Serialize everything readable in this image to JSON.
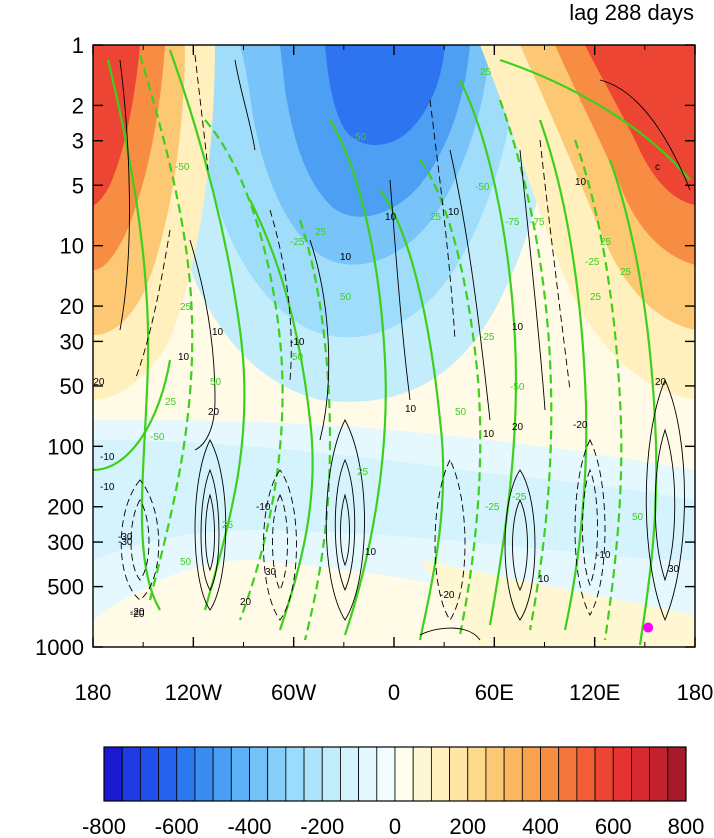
{
  "chart_data": {
    "type": "heatmap",
    "title": "lag 288 days",
    "xlabel": "",
    "ylabel": "",
    "x_ticks": [
      {
        "value": -180,
        "label": "180"
      },
      {
        "value": -120,
        "label": "120W"
      },
      {
        "value": -60,
        "label": "60W"
      },
      {
        "value": 0,
        "label": "0"
      },
      {
        "value": 60,
        "label": "60E"
      },
      {
        "value": 120,
        "label": "120E"
      },
      {
        "value": 180,
        "label": "180"
      }
    ],
    "y_scale": "log",
    "y_reversed": true,
    "y_ticks": [
      {
        "value": 1,
        "label": "1"
      },
      {
        "value": 2,
        "label": "2"
      },
      {
        "value": 3,
        "label": "3"
      },
      {
        "value": 5,
        "label": "5"
      },
      {
        "value": 10,
        "label": "10"
      },
      {
        "value": 20,
        "label": "20"
      },
      {
        "value": 30,
        "label": "30"
      },
      {
        "value": 50,
        "label": "50"
      },
      {
        "value": 100,
        "label": "100"
      },
      {
        "value": 200,
        "label": "200"
      },
      {
        "value": 300,
        "label": "300"
      },
      {
        "value": 500,
        "label": "500"
      },
      {
        "value": 1000,
        "label": "1000"
      }
    ],
    "xlim": [
      -180,
      180
    ],
    "ylim": [
      1000,
      1
    ],
    "colorbar": {
      "min": -800,
      "max": 800,
      "levels": 32,
      "labels": [
        "-800",
        "-600",
        "-400",
        "-200",
        "0",
        "200",
        "400",
        "600",
        "800"
      ],
      "label_values": [
        -800,
        -600,
        -400,
        -200,
        0,
        200,
        400,
        600,
        800
      ],
      "colors": [
        "#1c1ad0",
        "#1f3be4",
        "#2050ec",
        "#2563ef",
        "#2c78f0",
        "#3a8cf2",
        "#4a9ef4",
        "#5db1f6",
        "#72c2f8",
        "#86cffa",
        "#9bdbfb",
        "#aee4fb",
        "#c1ecfc",
        "#d3f3fd",
        "#e3f8fe",
        "#f1fcfe",
        "#fffdeb",
        "#fff7d4",
        "#fff0bd",
        "#ffe6a4",
        "#fed98c",
        "#fdc874",
        "#fcb65f",
        "#f9a24e",
        "#f78d43",
        "#f4763c",
        "#f05d37",
        "#ec4534",
        "#e53232",
        "#d72a30",
        "#c1222d",
        "#a51b28"
      ]
    },
    "shaded_field": {
      "units": "",
      "max_positive": 800,
      "max_negative": -800,
      "features": [
        {
          "name": "positive stratospheric anomaly (dateline west)",
          "center_lon": -165,
          "center_p": 3,
          "value": 650
        },
        {
          "name": "negative stratospheric anomaly",
          "center_lon": -10,
          "center_p": 3,
          "value": -600
        },
        {
          "name": "positive stratospheric anomaly (dateline east)",
          "center_lon": 165,
          "center_p": 3,
          "value": 650
        }
      ]
    },
    "black_contour_labels": [
      "-10",
      "10",
      "-20",
      "20",
      "-30",
      "30",
      "-10",
      "10",
      "-20",
      "20",
      "-10",
      "10",
      "c",
      "10",
      "10",
      "10",
      "10",
      "-10",
      "-30",
      "30",
      "-20",
      "20",
      "10",
      "-20",
      "10",
      "-10",
      "-20",
      "20",
      "10",
      "10"
    ],
    "green_contour_labels": [
      "25",
      "-50",
      "50",
      "-25",
      "25",
      "-75",
      "25",
      "50",
      "25",
      "-50",
      "-75",
      "-25",
      "25",
      "-50",
      "50",
      "25",
      "-25",
      "50",
      "25",
      "25",
      "50",
      "-50",
      "50",
      "-25",
      "-25",
      "50",
      "25",
      "25"
    ],
    "marker": {
      "lon": 152,
      "p": 800,
      "color": "#ff00ff"
    }
  }
}
